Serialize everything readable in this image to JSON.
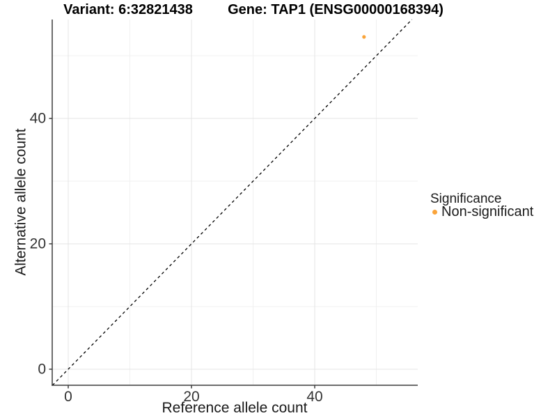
{
  "figure": {
    "titles": {
      "variant": "Variant: 6:32821438",
      "gene": "Gene: TAP1 (ENSG00000168394)"
    }
  },
  "legend": {
    "title": "Significance",
    "items": [
      {
        "label": "Non-significant",
        "marker": "dot",
        "color": "#FAA43A"
      }
    ]
  },
  "colors": {
    "background": "#ffffff",
    "point": "#FAA43A",
    "axis_line": "#3d3d3d",
    "tick_mark": "#3d3d3d",
    "tick_text": "#333333",
    "grid_major": "#e4e4e4",
    "grid_minor": "#f0f0f0",
    "identity_line": "#000000"
  },
  "chart_data": {
    "type": "scatter",
    "title": "Variant: 6:32821438    Gene: TAP1 (ENSG00000168394)",
    "xlabel": "Reference allele count",
    "ylabel": "Alternative allele count",
    "xlim": [
      -2.6,
      56.72
    ],
    "ylim": [
      -2.56,
      55.78
    ],
    "x_ticks": [
      0,
      20,
      40
    ],
    "y_ticks": [
      0,
      20,
      40
    ],
    "x_minor_ticks": [
      10,
      30,
      50
    ],
    "y_minor_ticks": [
      10,
      30,
      50
    ],
    "grid": true,
    "legend_position": "right",
    "series": [
      {
        "name": "Non-significant",
        "color": "#FAA43A",
        "points": [
          {
            "x": 48,
            "y": 53
          }
        ]
      }
    ],
    "reference_line": {
      "type": "identity",
      "slope": 1,
      "intercept": 0,
      "style": "dashed",
      "color": "#000000"
    }
  }
}
